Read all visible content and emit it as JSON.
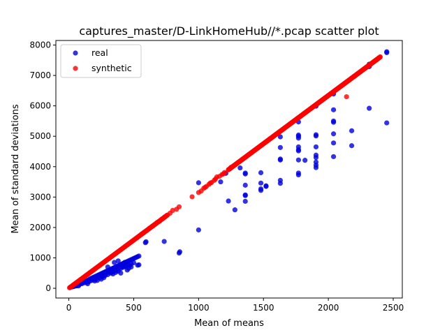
{
  "chart_data": {
    "type": "scatter",
    "title": "captures_master/D-LinkHomeHub//*.pcap scatter plot",
    "xlabel": "Mean of means",
    "ylabel": "Mean of standard deviations",
    "xlim": [
      -100,
      2570
    ],
    "ylim": [
      -320,
      8150
    ],
    "xticks": [
      0,
      500,
      1000,
      1500,
      2000,
      2500
    ],
    "yticks": [
      0,
      1000,
      2000,
      3000,
      4000,
      5000,
      6000,
      7000,
      8000
    ],
    "legend_position": "top-left",
    "grid": false,
    "series": [
      {
        "name": "real",
        "color": "#0000dd",
        "points": [
          [
            10,
            30
          ],
          [
            20,
            40
          ],
          [
            30,
            50
          ],
          [
            40,
            60
          ],
          [
            50,
            80
          ],
          [
            60,
            100
          ],
          [
            70,
            120
          ],
          [
            75,
            80
          ],
          [
            80,
            140
          ],
          [
            90,
            160
          ],
          [
            100,
            180
          ],
          [
            110,
            200
          ],
          [
            120,
            210
          ],
          [
            130,
            230
          ],
          [
            140,
            250
          ],
          [
            145,
            150
          ],
          [
            150,
            270
          ],
          [
            160,
            300
          ],
          [
            170,
            320
          ],
          [
            180,
            340
          ],
          [
            190,
            360
          ],
          [
            200,
            380
          ],
          [
            210,
            400
          ],
          [
            220,
            420
          ],
          [
            230,
            440
          ],
          [
            240,
            460
          ],
          [
            250,
            480
          ],
          [
            260,
            500
          ],
          [
            270,
            520
          ],
          [
            280,
            540
          ],
          [
            290,
            560
          ],
          [
            300,
            580
          ],
          [
            310,
            600
          ],
          [
            320,
            620
          ],
          [
            330,
            640
          ],
          [
            340,
            660
          ],
          [
            350,
            680
          ],
          [
            360,
            700
          ],
          [
            370,
            720
          ],
          [
            380,
            740
          ],
          [
            390,
            760
          ],
          [
            400,
            780
          ],
          [
            410,
            800
          ],
          [
            420,
            820
          ],
          [
            430,
            840
          ],
          [
            440,
            860
          ],
          [
            450,
            880
          ],
          [
            460,
            900
          ],
          [
            470,
            920
          ],
          [
            480,
            940
          ],
          [
            490,
            960
          ],
          [
            500,
            980
          ],
          [
            510,
            1000
          ],
          [
            520,
            1020
          ],
          [
            530,
            1040
          ],
          [
            540,
            1060
          ],
          [
            60,
            80
          ],
          [
            80,
            120
          ],
          [
            100,
            150
          ],
          [
            120,
            180
          ],
          [
            140,
            200
          ],
          [
            160,
            230
          ],
          [
            180,
            260
          ],
          [
            200,
            290
          ],
          [
            220,
            330
          ],
          [
            240,
            350
          ],
          [
            260,
            390
          ],
          [
            280,
            420
          ],
          [
            300,
            450
          ],
          [
            320,
            500
          ],
          [
            340,
            540
          ],
          [
            360,
            580
          ],
          [
            380,
            620
          ],
          [
            400,
            650
          ],
          [
            420,
            690
          ],
          [
            440,
            720
          ],
          [
            460,
            760
          ],
          [
            480,
            800
          ],
          [
            500,
            840
          ],
          [
            150,
            230
          ],
          [
            200,
            240
          ],
          [
            230,
            420
          ],
          [
            260,
            400
          ],
          [
            290,
            500
          ],
          [
            320,
            600
          ],
          [
            340,
            470
          ],
          [
            360,
            520
          ],
          [
            380,
            560
          ],
          [
            400,
            500
          ],
          [
            410,
            700
          ],
          [
            430,
            720
          ],
          [
            450,
            600
          ],
          [
            460,
            650
          ],
          [
            470,
            750
          ],
          [
            480,
            700
          ],
          [
            350,
            850
          ],
          [
            430,
            850
          ],
          [
            440,
            840
          ],
          [
            380,
            900
          ],
          [
            400,
            760
          ],
          [
            420,
            810
          ],
          [
            300,
            700
          ],
          [
            320,
            560
          ],
          [
            330,
            520
          ],
          [
            250,
            300
          ],
          [
            270,
            350
          ],
          [
            220,
            260
          ],
          [
            180,
            300
          ],
          [
            530,
            760
          ],
          [
            540,
            770
          ],
          [
            590,
            1500
          ],
          [
            595,
            1530
          ],
          [
            735,
            1540
          ],
          [
            850,
            1160
          ],
          [
            855,
            1200
          ],
          [
            1000,
            1920
          ],
          [
            1210,
            3780
          ],
          [
            1230,
            2870
          ],
          [
            1280,
            2580
          ],
          [
            1320,
            3960
          ],
          [
            1360,
            2860
          ],
          [
            1360,
            3050
          ],
          [
            1360,
            3070
          ],
          [
            1360,
            3390
          ],
          [
            1360,
            3760
          ],
          [
            1360,
            3790
          ],
          [
            1480,
            3220
          ],
          [
            1480,
            3270
          ],
          [
            1480,
            3460
          ],
          [
            1480,
            3800
          ],
          [
            1520,
            3350
          ],
          [
            1520,
            3370
          ],
          [
            1630,
            3450
          ],
          [
            1630,
            3550
          ],
          [
            1630,
            4220
          ],
          [
            1630,
            4250
          ],
          [
            1630,
            4630
          ],
          [
            1630,
            4980
          ],
          [
            1770,
            3730
          ],
          [
            1770,
            3790
          ],
          [
            1770,
            4220
          ],
          [
            1770,
            4520
          ],
          [
            1770,
            4560
          ],
          [
            1770,
            4650
          ],
          [
            1770,
            4940
          ],
          [
            1770,
            5000
          ],
          [
            1770,
            5040
          ],
          [
            1770,
            5470
          ],
          [
            1820,
            4210
          ],
          [
            1905,
            3970
          ],
          [
            1905,
            4050
          ],
          [
            1905,
            4150
          ],
          [
            1905,
            4300
          ],
          [
            1905,
            4380
          ],
          [
            1905,
            4650
          ],
          [
            1905,
            5010
          ],
          [
            1905,
            5050
          ],
          [
            1905,
            5990
          ],
          [
            2040,
            4330
          ],
          [
            2040,
            4780
          ],
          [
            2040,
            5080
          ],
          [
            2040,
            5460
          ],
          [
            2040,
            5500
          ],
          [
            2040,
            5870
          ],
          [
            2040,
            6390
          ],
          [
            2180,
            4690
          ],
          [
            2180,
            5180
          ],
          [
            2315,
            5920
          ],
          [
            2315,
            7290
          ],
          [
            2315,
            7330
          ],
          [
            2315,
            7370
          ],
          [
            2450,
            5440
          ],
          [
            2450,
            7750
          ],
          [
            2450,
            7780
          ],
          [
            1170,
            3500
          ],
          [
            1000,
            3470
          ]
        ]
      },
      {
        "name": "synthetic",
        "color": "#ff0000",
        "line_slope": 3.17,
        "line_segments": [
          [
            5,
            760
          ],
          [
            1230,
            2390
          ]
        ],
        "points": [
          [
            950,
            3010
          ],
          [
            1000,
            3150
          ],
          [
            1020,
            3200
          ],
          [
            1040,
            3290
          ],
          [
            1140,
            3660
          ],
          [
            1180,
            3740
          ],
          [
            1190,
            3760
          ],
          [
            1250,
            3980
          ],
          [
            850,
            2680
          ],
          [
            830,
            2600
          ],
          [
            800,
            2560
          ],
          [
            1050,
            3320
          ],
          [
            1060,
            3350
          ],
          [
            1080,
            3420
          ],
          [
            1090,
            3460
          ],
          [
            1100,
            3480
          ],
          [
            1120,
            3550
          ],
          [
            1130,
            3590
          ],
          [
            1160,
            3680
          ],
          [
            1200,
            3810
          ],
          [
            1230,
            3900
          ],
          [
            700,
            2210
          ],
          [
            720,
            2280
          ],
          [
            740,
            2350
          ],
          [
            760,
            2410
          ],
          [
            780,
            2470
          ],
          [
            680,
            2160
          ],
          [
            660,
            2090
          ],
          [
            650,
            2060
          ],
          [
            640,
            2030
          ],
          [
            620,
            1970
          ],
          [
            600,
            1900
          ],
          [
            580,
            1840
          ],
          [
            560,
            1780
          ],
          [
            2140,
            6300
          ],
          [
            2400,
            7610
          ],
          [
            2390,
            7580
          ],
          [
            2370,
            7510
          ],
          [
            2350,
            7450
          ],
          [
            2330,
            7390
          ],
          [
            2300,
            7290
          ],
          [
            2280,
            7230
          ]
        ]
      }
    ]
  }
}
